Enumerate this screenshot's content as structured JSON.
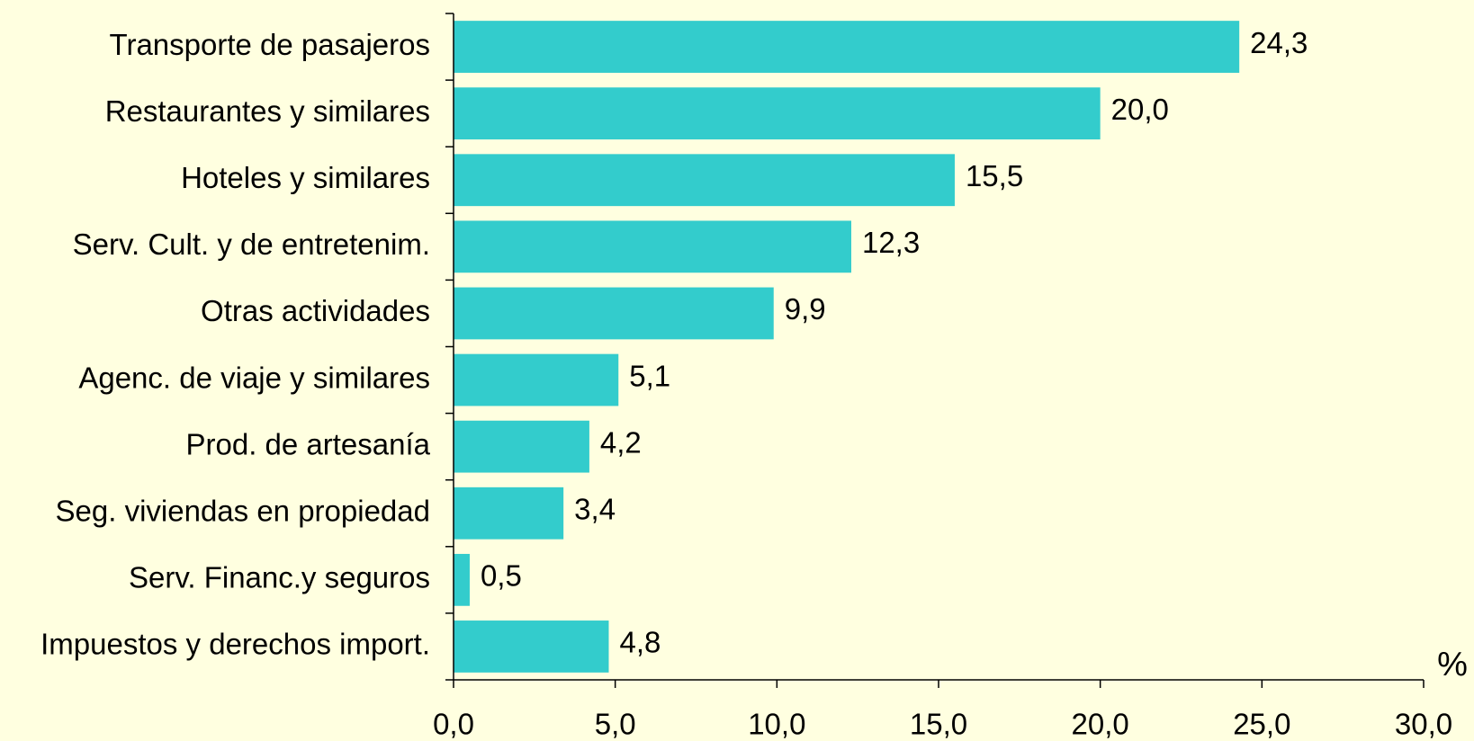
{
  "chart_data": {
    "type": "hbar",
    "categories": [
      "Transporte de pasajeros",
      "Restaurantes y similares",
      "Hoteles y similares",
      "Serv. Cult. y de entretenim.",
      "Otras actividades",
      "Agenc. de viaje y similares",
      "Prod. de artesanía",
      "Seg. viviendas en propiedad",
      "Serv. Financ.y seguros",
      "Impuestos y derechos import."
    ],
    "values": [
      24.3,
      20.0,
      15.5,
      12.3,
      9.9,
      5.1,
      4.2,
      3.4,
      0.5,
      4.8
    ],
    "value_labels": [
      "24,3",
      "20,0",
      "15,5",
      "12,3",
      "9,9",
      "5,1",
      "4,2",
      "3,4",
      "0,5",
      "4,8"
    ],
    "color": "#33cccc",
    "xlabel": "%",
    "xlim": [
      0,
      30
    ],
    "xticks": [
      {
        "value": 0,
        "label": "0,0"
      },
      {
        "value": 5,
        "label": "5,0"
      },
      {
        "value": 10,
        "label": "10,0"
      },
      {
        "value": 15,
        "label": "15,0"
      },
      {
        "value": 20,
        "label": "20,0"
      },
      {
        "value": 25,
        "label": "25,0"
      },
      {
        "value": 30,
        "label": "30,0"
      }
    ]
  }
}
